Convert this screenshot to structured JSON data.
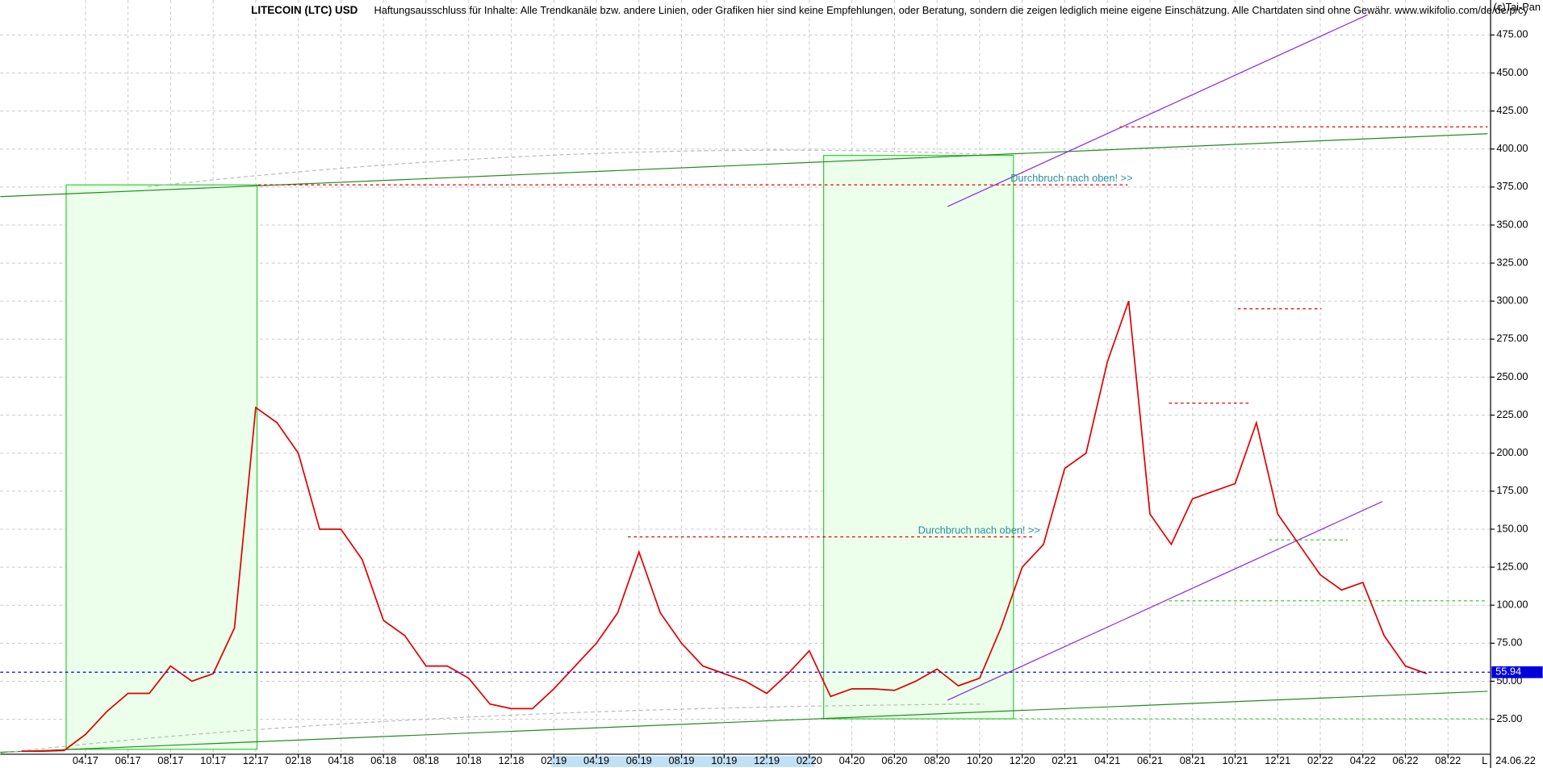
{
  "chart_data": {
    "type": "line",
    "title": "LITECOIN (LTC) USD",
    "subtitle": "Haftungsausschluss für Inhalte: Alle Trendkanäle bzw. andere Linien, oder Grafiken hier sind keine Empfehlungen, oder Beratung, sondern die zeigen lediglich meine eigene Einschätzung. Alle Chartdaten sind ohne Gewähr.  www.wikifolio.com/de/de/p/cy",
    "source": "(c)Tai-Pan",
    "annotations": [
      "Durchbruch nach oben! >>",
      "Durchbruch nach oben! >>"
    ],
    "last_value": 55.94,
    "last_date": "24.06.22",
    "scale_mode": "L",
    "x": [
      "2017-01",
      "2017-02",
      "2017-03",
      "2017-04",
      "2017-05",
      "2017-06",
      "2017-07",
      "2017-08",
      "2017-09",
      "2017-10",
      "2017-11",
      "2017-12",
      "2018-01",
      "2018-02",
      "2018-03",
      "2018-04",
      "2018-05",
      "2018-06",
      "2018-07",
      "2018-08",
      "2018-09",
      "2018-10",
      "2018-11",
      "2018-12",
      "2019-01",
      "2019-02",
      "2019-03",
      "2019-04",
      "2019-05",
      "2019-06",
      "2019-07",
      "2019-08",
      "2019-09",
      "2019-10",
      "2019-11",
      "2019-12",
      "2020-01",
      "2020-02",
      "2020-03",
      "2020-04",
      "2020-05",
      "2020-06",
      "2020-07",
      "2020-08",
      "2020-09",
      "2020-10",
      "2020-11",
      "2020-12",
      "2021-01",
      "2021-02",
      "2021-03",
      "2021-04",
      "2021-05",
      "2021-06",
      "2021-07",
      "2021-08",
      "2021-09",
      "2021-10",
      "2021-11",
      "2021-12",
      "2022-01",
      "2022-02",
      "2022-03",
      "2022-04",
      "2022-05",
      "2022-06",
      "2022-07"
    ],
    "series": [
      {
        "name": "LTC",
        "color": "#e00000",
        "values": [
          4,
          4,
          4.5,
          15,
          30,
          42,
          42,
          60,
          50,
          55,
          85,
          230,
          220,
          200,
          150,
          150,
          130,
          90,
          80,
          60,
          60,
          52,
          35,
          32,
          32,
          45,
          60,
          75,
          95,
          135,
          95,
          75,
          60,
          55,
          50,
          42,
          55,
          70,
          40,
          45,
          45,
          44,
          50,
          58,
          47,
          52,
          85,
          125,
          140,
          190,
          200,
          260,
          300,
          160,
          140,
          170,
          175,
          180,
          220,
          160,
          140,
          120,
          110,
          115,
          80,
          60,
          55
        ]
      }
    ],
    "xlim": [
      "2016-12",
      "2022-10"
    ],
    "xticks": [
      {
        "value": "2017-04",
        "label": "04.17"
      },
      {
        "value": "2017-06",
        "label": "06.17"
      },
      {
        "value": "2017-08",
        "label": "08.17"
      },
      {
        "value": "2017-10",
        "label": "10.17"
      },
      {
        "value": "2017-12",
        "label": "12.17"
      },
      {
        "value": "2018-02",
        "label": "02.18"
      },
      {
        "value": "2018-04",
        "label": "04.18"
      },
      {
        "value": "2018-06",
        "label": "06.18"
      },
      {
        "value": "2018-08",
        "label": "08.18"
      },
      {
        "value": "2018-10",
        "label": "10.18"
      },
      {
        "value": "2018-12",
        "label": "12.18"
      },
      {
        "value": "2019-02",
        "label": "02.19"
      },
      {
        "value": "2019-04",
        "label": "04.19"
      },
      {
        "value": "2019-06",
        "label": "06.19"
      },
      {
        "value": "2019-08",
        "label": "08.19"
      },
      {
        "value": "2019-10",
        "label": "10.19"
      },
      {
        "value": "2019-12",
        "label": "12.19"
      },
      {
        "value": "2020-02",
        "label": "02.20"
      },
      {
        "value": "2020-04",
        "label": "04.20"
      },
      {
        "value": "2020-06",
        "label": "06.20"
      },
      {
        "value": "2020-08",
        "label": "08.20"
      },
      {
        "value": "2020-10",
        "label": "10.20"
      },
      {
        "value": "2020-12",
        "label": "12.20"
      },
      {
        "value": "2021-02",
        "label": "02.21"
      },
      {
        "value": "2021-04",
        "label": "04.21"
      },
      {
        "value": "2021-06",
        "label": "06.21"
      },
      {
        "value": "2021-08",
        "label": "08.21"
      },
      {
        "value": "2021-10",
        "label": "10.21"
      },
      {
        "value": "2021-12",
        "label": "12.21"
      },
      {
        "value": "2022-02",
        "label": "02.22"
      },
      {
        "value": "2022-04",
        "label": "04.22"
      },
      {
        "value": "2022-06",
        "label": "06.22"
      },
      {
        "value": "2022-08",
        "label": "08.22"
      }
    ],
    "ylim": [
      2,
      498
    ],
    "yticks": [
      {
        "value": 25,
        "label": "25.00"
      },
      {
        "value": 50,
        "label": "50.00"
      },
      {
        "value": 75,
        "label": "75.00"
      },
      {
        "value": 100,
        "label": "100.00"
      },
      {
        "value": 125,
        "label": "125.00"
      },
      {
        "value": 150,
        "label": "150.00"
      },
      {
        "value": 175,
        "label": "175.00"
      },
      {
        "value": 200,
        "label": "200.00"
      },
      {
        "value": 225,
        "label": "225.00"
      },
      {
        "value": 250,
        "label": "250.00"
      },
      {
        "value": 275,
        "label": "275.00"
      },
      {
        "value": 300,
        "label": "300.00"
      },
      {
        "value": 325,
        "label": "325.00"
      },
      {
        "value": 350,
        "label": "350.00"
      },
      {
        "value": 375,
        "label": "375.00"
      },
      {
        "value": 400,
        "label": "400.00"
      },
      {
        "value": 425,
        "label": "425.00"
      },
      {
        "value": 450,
        "label": "450.00"
      },
      {
        "value": 475,
        "label": "475.00"
      }
    ],
    "grid": true
  }
}
